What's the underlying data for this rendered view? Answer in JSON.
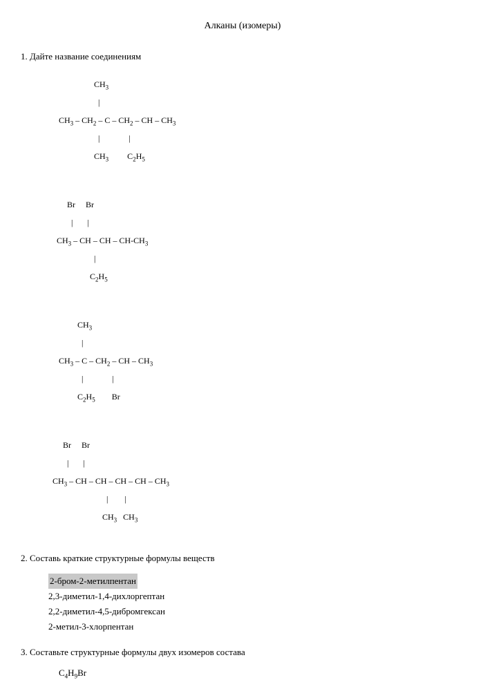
{
  "title": "Алканы (изомеры)",
  "task1": {
    "heading": "1. Дайте название соединениям",
    "formula1": {
      "r1": "                      CH",
      "r1s": "3",
      "r2": "                        |",
      "r3a": "     CH",
      "r3as": "3",
      "r3b": " – CH",
      "r3bs": "2",
      "r3c": " – C – CH",
      "r3cs": "2",
      "r3d": " – CH – CH",
      "r3ds": "3",
      "r4": "                        |              |",
      "r5a": "                      CH",
      "r5as": "3",
      "r5b": "         C",
      "r5bs": "2",
      "r5c": "H",
      "r5cs": "5"
    },
    "formula2": {
      "r1": "         Br     Br",
      "r2": "           |       |",
      "r3a": "    CH",
      "r3as": "3",
      "r3b": " – CH – CH – CH-CH",
      "r3bs": "3",
      "r4": "                      |",
      "r5a": "                    C",
      "r5as": "2",
      "r5b": "H",
      "r5bs": "5"
    },
    "formula3": {
      "r1a": "              CH",
      "r1as": "3",
      "r2": "                |",
      "r3a": "     CH",
      "r3as": "3",
      "r3b": " – C – CH",
      "r3bs": "2",
      "r3c": " – CH – CH",
      "r3cs": "3",
      "r4": "                |              |",
      "r5a": "              C",
      "r5as": "2",
      "r5b": "H",
      "r5bs": "5",
      "r5c": "        Br"
    },
    "formula4": {
      "r1": "       Br     Br",
      "r2": "         |       |",
      "r3a": "  CH",
      "r3as": "3",
      "r3b": " – CH – CH – CH – CH – CH",
      "r3bs": "3",
      "r4": "                            |        |",
      "r5a": "                          CH",
      "r5as": "3",
      "r5b": "   CH",
      "r5bs": "3"
    }
  },
  "task2": {
    "heading": "2. Составь краткие структурные формулы веществ",
    "items": [
      {
        "text": "2-бром-2-метилпентан",
        "highlighted": true
      },
      {
        "text": "2,3-диметил-1,4-дихлоргептан",
        "highlighted": false
      },
      {
        "text": "2,2-диметил-4,5-дибромгексан",
        "highlighted": false
      },
      {
        "text": "2-метил-3-хлорпентан",
        "highlighted": false
      }
    ]
  },
  "task3": {
    "heading": "3. Составьте структурные формулы двух изомеров состава",
    "formula_a": "C",
    "formula_as": "4",
    "formula_b": "H",
    "formula_bs": "9",
    "formula_c": "Br"
  }
}
